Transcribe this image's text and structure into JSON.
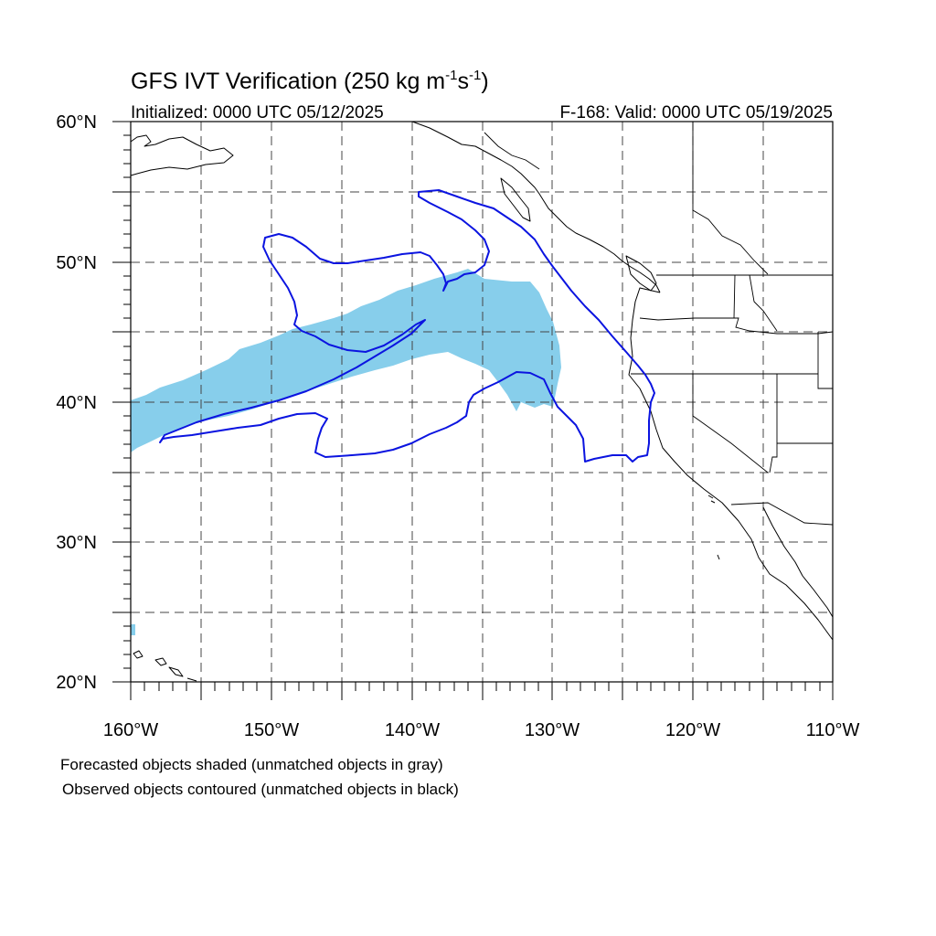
{
  "map": {
    "title_main": "GFS IVT Verification (250 kg m",
    "title_exp1": "-1",
    "title_mid": "s",
    "title_exp2": "-1",
    "title_end": ")",
    "initialized": "Initialized: 0000 UTC 05/12/2025",
    "valid": "F-168: Valid: 0000 UTC 05/19/2025",
    "footnote_1": "Forecasted objects shaded (unmatched objects in gray)",
    "footnote_2": "Observed objects contoured (unmatched objects in black)",
    "lat_labels": [
      "60°N",
      "50°N",
      "40°N",
      "30°N",
      "20°N"
    ],
    "lon_labels": [
      "160°W",
      "150°W",
      "140°W",
      "130°W",
      "120°W",
      "110°W"
    ],
    "extent": {
      "lon_min": -160,
      "lon_max": -110,
      "lat_min": 20,
      "lat_max": 60
    },
    "colors": {
      "forecast_fill": "#87ceeb",
      "observed_contour": "#0b14e0",
      "coast": "#000000"
    }
  }
}
